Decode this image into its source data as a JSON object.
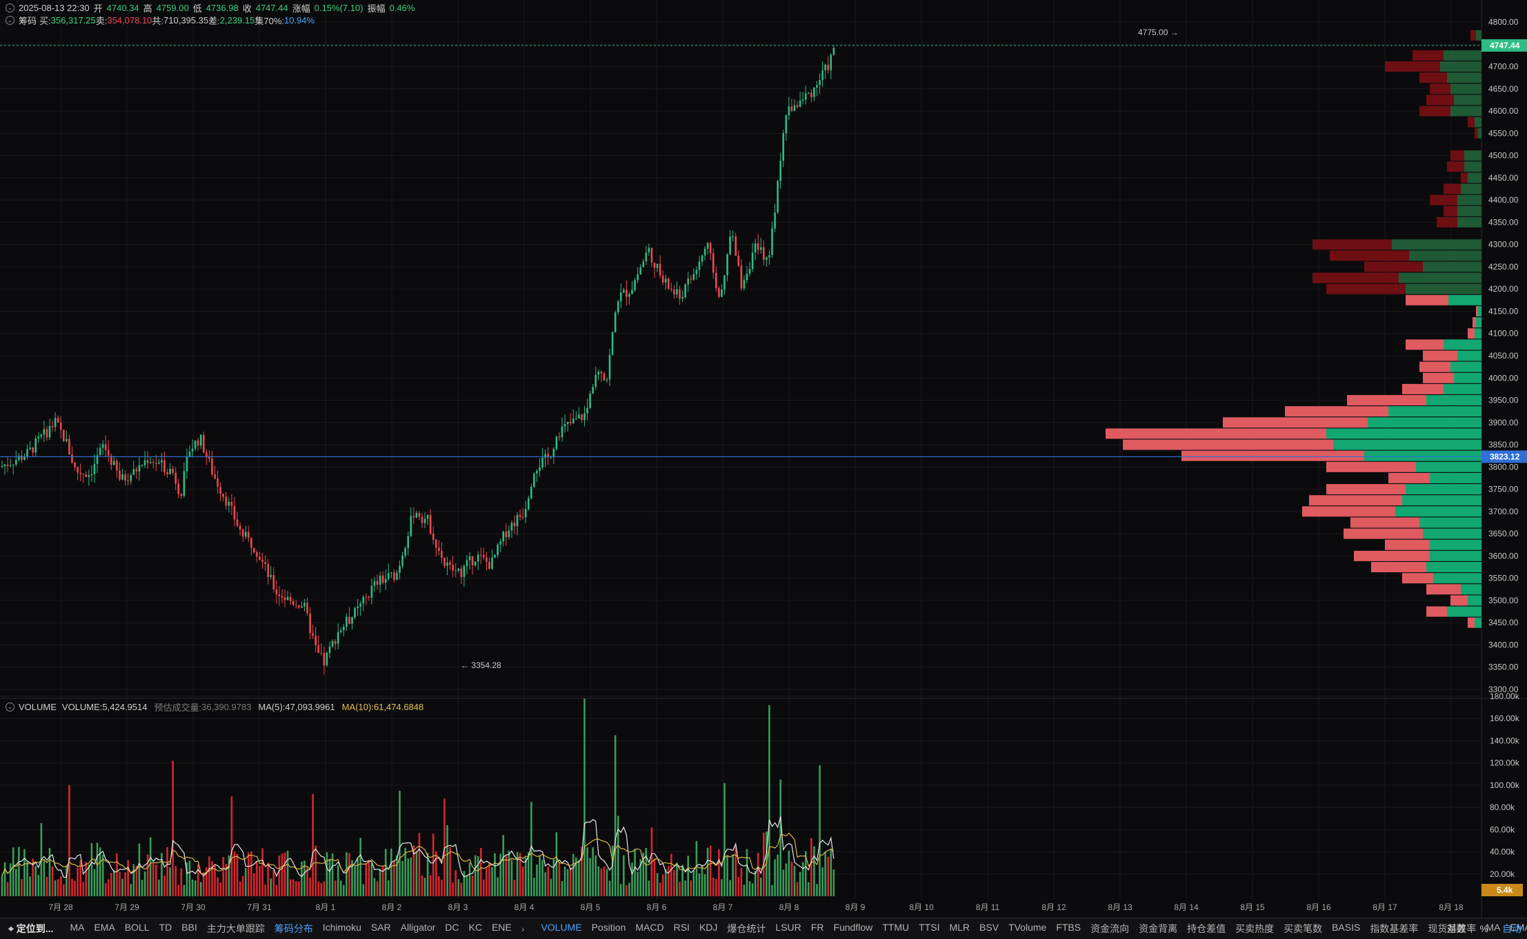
{
  "header": {
    "datetime": "2025-08-13 22:30",
    "open_label": "开",
    "open": "4740.34",
    "high_label": "高",
    "high": "4759.00",
    "low_label": "低",
    "low": "4736.98",
    "close_label": "收",
    "close": "4747.44",
    "change_label": "涨幅",
    "change": "0.15%(7.10)",
    "amp_label": "振幅",
    "amp": "0.46%"
  },
  "chips": {
    "label": "筹码",
    "buy_label": "买:",
    "buy": "356,317.25",
    "sell_label": "卖:",
    "sell": "354,078.10",
    "total_label": "共:",
    "total": "710,395.35",
    "diff_label": "差:",
    "diff": "2,239.15",
    "conc_label": "集70%:",
    "conc": "10.94%"
  },
  "volume_header": {
    "title": "VOLUME",
    "vol_label": "VOLUME:",
    "vol": "5,424.9514",
    "est_label": "预估成交量:",
    "est": "36,390.9783",
    "ma5_label": "MA(5):",
    "ma5": "47,093.9961",
    "ma10_label": "MA(10):",
    "ma10": "61,474.6848"
  },
  "price_axis": {
    "ticks": [
      "4800.00",
      "4750.00",
      "4700.00",
      "4650.00",
      "4600.00",
      "4550.00",
      "4500.00",
      "4450.00",
      "4400.00",
      "4350.00",
      "4300.00",
      "4250.00",
      "4200.00",
      "4150.00",
      "4100.00",
      "4050.00",
      "4000.00",
      "3950.00",
      "3900.00",
      "3850.00",
      "3800.00",
      "3750.00",
      "3700.00",
      "3650.00",
      "3600.00",
      "3550.00",
      "3500.00",
      "3450.00",
      "3400.00",
      "3350.00",
      "3300.00"
    ],
    "last_price_tag": "4747.44",
    "cost_tag": "3823.12"
  },
  "volume_axis": {
    "ticks": [
      "180.00k",
      "160.00k",
      "140.00k",
      "120.00k",
      "100.00k",
      "80.00k",
      "60.00k",
      "40.00k",
      "20.00k"
    ],
    "last_tag": "5.4k"
  },
  "annotations": {
    "high": "4775.00 →",
    "low": "← 3354.28"
  },
  "time_axis": [
    "7月 28",
    "7月 29",
    "7月 30",
    "7月 31",
    "8月 1",
    "8月 2",
    "8月 3",
    "8月 4",
    "8月 5",
    "8月 6",
    "8月 7",
    "8月 8",
    "8月 9",
    "8月 10",
    "8月 11",
    "8月 12",
    "8月 13",
    "8月 14",
    "8月 15",
    "8月 16",
    "8月 17",
    "8月 18"
  ],
  "indicator_bar": {
    "locate": "定位到...",
    "main": [
      "MA",
      "EMA",
      "BOLL",
      "TD",
      "BBI",
      "主力大单跟踪",
      "筹码分布",
      "Ichimoku",
      "SAR",
      "Alligator",
      "DC",
      "KC",
      "ENE"
    ],
    "main_active": "筹码分布",
    "sub": [
      "VOLUME",
      "Position",
      "MACD",
      "RSI",
      "KDJ",
      "爆仓统计",
      "LSUR",
      "FR",
      "Fundflow",
      "TTMU",
      "TTSI",
      "MLR",
      "BSV",
      "TVolume",
      "FTBS",
      "资金流向",
      "资金背离",
      "持仓差值",
      "买卖热度",
      "买卖笔数",
      "BASIS",
      "指数基差率",
      "现货基差率",
      "MA",
      "EMA"
    ],
    "sub_active": "VOLUME",
    "right": [
      "对数",
      "%",
      "自动"
    ],
    "right_active": "自动"
  },
  "colors": {
    "up": "#2ebd85",
    "down": "#f0484f",
    "bg": "#0b0b0d",
    "cost_line": "#2f6fd6"
  },
  "chart_data": {
    "type": "candlestick",
    "price_range": [
      3300,
      4800
    ],
    "volume_range": [
      0,
      180000
    ],
    "anchors": [
      [
        0,
        3800
      ],
      [
        40,
        3830
      ],
      [
        62,
        3870
      ],
      [
        80,
        3900
      ],
      [
        95,
        3860
      ],
      [
        110,
        3790
      ],
      [
        130,
        3785
      ],
      [
        150,
        3850
      ],
      [
        175,
        3770
      ],
      [
        195,
        3790
      ],
      [
        215,
        3820
      ],
      [
        250,
        3790
      ],
      [
        262,
        3740
      ],
      [
        275,
        3840
      ],
      [
        290,
        3865
      ],
      [
        310,
        3780
      ],
      [
        330,
        3720
      ],
      [
        350,
        3650
      ],
      [
        370,
        3620
      ],
      [
        400,
        3520
      ],
      [
        420,
        3500
      ],
      [
        440,
        3490
      ],
      [
        460,
        3380
      ],
      [
        470,
        3360
      ],
      [
        490,
        3430
      ],
      [
        520,
        3480
      ],
      [
        545,
        3540
      ],
      [
        575,
        3560
      ],
      [
        600,
        3700
      ],
      [
        620,
        3680
      ],
      [
        645,
        3580
      ],
      [
        665,
        3560
      ],
      [
        690,
        3600
      ],
      [
        712,
        3580
      ],
      [
        735,
        3660
      ],
      [
        760,
        3700
      ],
      [
        775,
        3800
      ],
      [
        795,
        3820
      ],
      [
        810,
        3880
      ],
      [
        830,
        3900
      ],
      [
        850,
        3920
      ],
      [
        865,
        4030
      ],
      [
        880,
        4000
      ],
      [
        895,
        4180
      ],
      [
        915,
        4200
      ],
      [
        940,
        4290
      ],
      [
        960,
        4220
      ],
      [
        985,
        4180
      ],
      [
        1005,
        4230
      ],
      [
        1025,
        4300
      ],
      [
        1045,
        4170
      ],
      [
        1060,
        4330
      ],
      [
        1075,
        4210
      ],
      [
        1095,
        4290
      ],
      [
        1115,
        4270
      ],
      [
        1125,
        4400
      ],
      [
        1140,
        4600
      ],
      [
        1160,
        4620
      ],
      [
        1180,
        4650
      ],
      [
        1200,
        4700
      ],
      [
        1212,
        4747
      ]
    ],
    "volume_spikes": [
      [
        100,
        100000
      ],
      [
        250,
        122000
      ],
      [
        335,
        90000
      ],
      [
        455,
        92000
      ],
      [
        578,
        95000
      ],
      [
        645,
        88000
      ],
      [
        770,
        85000
      ],
      [
        848,
        178000
      ],
      [
        892,
        145000
      ],
      [
        1052,
        102000
      ],
      [
        1117,
        172000
      ],
      [
        1133,
        105000
      ],
      [
        1188,
        118000
      ]
    ],
    "chip_distribution": [
      {
        "price": 4770,
        "buy": 8,
        "sell": 8
      },
      {
        "price": 4725,
        "buy": 55,
        "sell": 45
      },
      {
        "price": 4700,
        "buy": 60,
        "sell": 80
      },
      {
        "price": 4675,
        "buy": 50,
        "sell": 40
      },
      {
        "price": 4650,
        "buy": 45,
        "sell": 30
      },
      {
        "price": 4625,
        "buy": 40,
        "sell": 40
      },
      {
        "price": 4600,
        "buy": 45,
        "sell": 45
      },
      {
        "price": 4575,
        "buy": 10,
        "sell": 10
      },
      {
        "price": 4550,
        "buy": 5,
        "sell": 5
      },
      {
        "price": 4500,
        "buy": 25,
        "sell": 20
      },
      {
        "price": 4475,
        "buy": 25,
        "sell": 25
      },
      {
        "price": 4450,
        "buy": 20,
        "sell": 10
      },
      {
        "price": 4425,
        "buy": 30,
        "sell": 25
      },
      {
        "price": 4400,
        "buy": 35,
        "sell": 40
      },
      {
        "price": 4375,
        "buy": 35,
        "sell": 20
      },
      {
        "price": 4350,
        "buy": 35,
        "sell": 30
      },
      {
        "price": 4300,
        "buy": 130,
        "sell": 115
      },
      {
        "price": 4275,
        "buy": 105,
        "sell": 115
      },
      {
        "price": 4250,
        "buy": 85,
        "sell": 85
      },
      {
        "price": 4225,
        "buy": 120,
        "sell": 125
      },
      {
        "price": 4200,
        "buy": 110,
        "sell": 115
      },
      {
        "price": 4175,
        "buy": 48,
        "sell": 62
      },
      {
        "price": 4150,
        "buy": 5,
        "sell": 3
      },
      {
        "price": 4125,
        "buy": 8,
        "sell": 5
      },
      {
        "price": 4100,
        "buy": 10,
        "sell": 10
      },
      {
        "price": 4075,
        "buy": 55,
        "sell": 55
      },
      {
        "price": 4050,
        "buy": 35,
        "sell": 50
      },
      {
        "price": 4025,
        "buy": 45,
        "sell": 45
      },
      {
        "price": 4000,
        "buy": 40,
        "sell": 45
      },
      {
        "price": 3975,
        "buy": 55,
        "sell": 60
      },
      {
        "price": 3950,
        "buy": 80,
        "sell": 115
      },
      {
        "price": 3925,
        "buy": 135,
        "sell": 150
      },
      {
        "price": 3900,
        "buy": 165,
        "sell": 210
      },
      {
        "price": 3875,
        "buy": 225,
        "sell": 320
      },
      {
        "price": 3850,
        "buy": 215,
        "sell": 305
      },
      {
        "price": 3825,
        "buy": 170,
        "sell": 265
      },
      {
        "price": 3800,
        "buy": 95,
        "sell": 130
      },
      {
        "price": 3775,
        "buy": 75,
        "sell": 60
      },
      {
        "price": 3750,
        "buy": 110,
        "sell": 115
      },
      {
        "price": 3725,
        "buy": 115,
        "sell": 135
      },
      {
        "price": 3700,
        "buy": 125,
        "sell": 135
      },
      {
        "price": 3675,
        "buy": 90,
        "sell": 100
      },
      {
        "price": 3650,
        "buy": 85,
        "sell": 115
      },
      {
        "price": 3625,
        "buy": 75,
        "sell": 65
      },
      {
        "price": 3600,
        "buy": 75,
        "sell": 110
      },
      {
        "price": 3575,
        "buy": 80,
        "sell": 80
      },
      {
        "price": 3550,
        "buy": 70,
        "sell": 45
      },
      {
        "price": 3525,
        "buy": 30,
        "sell": 50
      },
      {
        "price": 3500,
        "buy": 20,
        "sell": 25
      },
      {
        "price": 3475,
        "buy": 50,
        "sell": 30
      },
      {
        "price": 3450,
        "buy": 10,
        "sell": 10
      }
    ]
  }
}
